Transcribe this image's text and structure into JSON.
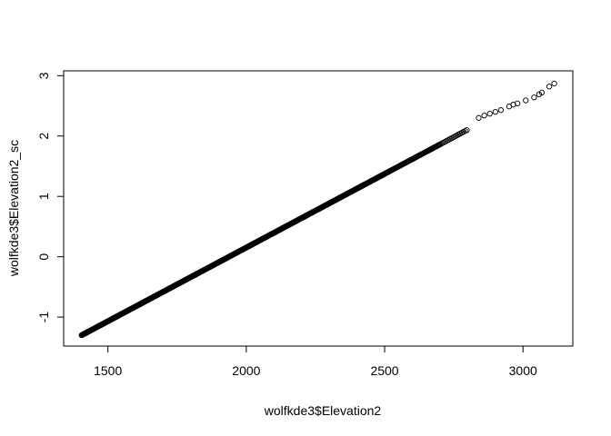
{
  "chart_data": {
    "type": "scatter",
    "title": "",
    "xlabel": "wolfkde3$Elevation2",
    "ylabel": "wolfkde3$Elevation2_sc",
    "xlim": [
      1340,
      3180
    ],
    "ylim": [
      -1.48,
      3.08
    ],
    "x_ticks": [
      1500,
      2000,
      2500,
      3000
    ],
    "y_ticks": [
      -1,
      0,
      1,
      2,
      3
    ],
    "x_tick_labels": [
      "1500",
      "2000",
      "2500",
      "3000"
    ],
    "y_tick_labels": [
      "-1",
      "0",
      "1",
      "2",
      "3"
    ],
    "grid": false,
    "legend": "none",
    "marker": "open-circle",
    "series": [
      {
        "values_range": {
          "x": [
            1405,
            3113
          ],
          "y": [
            -1.3,
            2.87
          ]
        },
        "relationship": "linear",
        "sparse_tail_points": [
          [
            2840,
            2.3
          ],
          [
            2860,
            2.34
          ],
          [
            2880,
            2.37
          ],
          [
            2900,
            2.4
          ],
          [
            2920,
            2.43
          ],
          [
            2950,
            2.49
          ],
          [
            2965,
            2.52
          ],
          [
            2980,
            2.54
          ],
          [
            3010,
            2.59
          ],
          [
            3040,
            2.64
          ],
          [
            3058,
            2.69
          ],
          [
            3068,
            2.72
          ],
          [
            3095,
            2.82
          ],
          [
            3113,
            2.87
          ]
        ]
      }
    ]
  }
}
